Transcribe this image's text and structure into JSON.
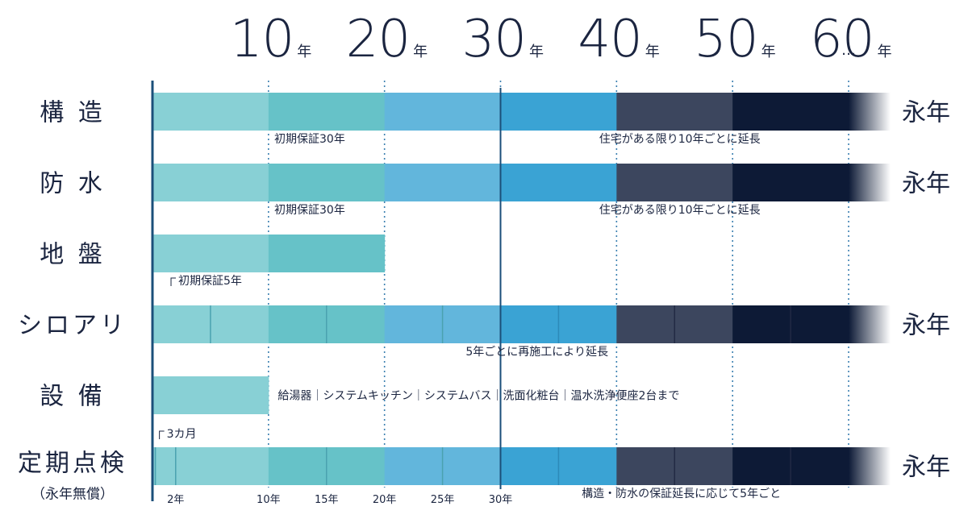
{
  "colors": {
    "seg": [
      "#88d0d5",
      "#66c2c8",
      "#62b6dc",
      "#3aa3d4",
      "#3c465e",
      "#0d1a36"
    ],
    "text": "#1b2540",
    "grid": "#3a7fb0",
    "axis": "#1b4f7a"
  },
  "chart_data": {
    "type": "bar",
    "title": "",
    "header": {
      "decades": [
        {
          "num": "10",
          "unit": "年",
          "x": 10
        },
        {
          "num": "20",
          "unit": "年",
          "x": 20
        },
        {
          "num": "30",
          "unit": "年",
          "x": 30
        },
        {
          "num": "40",
          "unit": "年",
          "x": 40
        },
        {
          "num": "50",
          "unit": "年",
          "x": 50
        },
        {
          "num": "60",
          "unit": "年",
          "x": 60
        }
      ],
      "ellipsis": "…"
    },
    "xlim": [
      0,
      60
    ],
    "gridlines": [
      10,
      20,
      30,
      40,
      50,
      60
    ],
    "current_line": 30,
    "rows": [
      {
        "label": "構 造",
        "end": 60,
        "fade": true,
        "eternal": "永年",
        "minor_ticks": [],
        "annotations": [
          {
            "text": "初期保証30年",
            "x": 10.5,
            "where": "below"
          },
          {
            "text": "住宅がある限り10年ごとに延長",
            "x": 38.5,
            "where": "below"
          }
        ]
      },
      {
        "label": "防 水",
        "end": 60,
        "fade": true,
        "eternal": "永年",
        "minor_ticks": [],
        "annotations": [
          {
            "text": "初期保証30年",
            "x": 10.5,
            "where": "below"
          },
          {
            "text": "住宅がある限り10年ごとに延長",
            "x": 38.5,
            "where": "below"
          }
        ]
      },
      {
        "label": "地 盤",
        "end": 20,
        "fade": false,
        "eternal": "",
        "minor_ticks": [],
        "annotations": [
          {
            "text": "初期保証5年",
            "x": 1.6,
            "where": "below",
            "bracket": true
          }
        ]
      },
      {
        "label": "シロアリ",
        "end": 60,
        "fade": true,
        "eternal": "永年",
        "minor_ticks": [
          5,
          15,
          25,
          35,
          45,
          55
        ],
        "annotations": [
          {
            "text": "5年ごとに再施工により延長",
            "x": 27,
            "where": "below"
          }
        ]
      },
      {
        "label": "設 備",
        "end": 10,
        "fade": false,
        "eternal": "",
        "minor_ticks": [],
        "annotations": [
          {
            "text": "給湯器｜システムキッチン｜システムバス｜洗面化粧台｜温水洗浄便座2台まで",
            "x": 10.8,
            "where": "right"
          }
        ]
      },
      {
        "label": "定期点検",
        "sublabel": "（永年無償）",
        "end": 60,
        "fade": true,
        "eternal": "永年",
        "minor_ticks": [
          0.25,
          2,
          15,
          25,
          35,
          45,
          55
        ],
        "annotations": [
          {
            "text": "3カ月",
            "x": 0.6,
            "where": "above",
            "bracket": true
          },
          {
            "text": "構造・防水の保証延長に応じて5年ごと",
            "x": 37,
            "where": "below"
          }
        ]
      }
    ],
    "bottom_ticks": [
      {
        "label": "2年",
        "x": 2
      },
      {
        "label": "10年",
        "x": 10
      },
      {
        "label": "15年",
        "x": 15
      },
      {
        "label": "20年",
        "x": 20
      },
      {
        "label": "25年",
        "x": 25
      },
      {
        "label": "30年",
        "x": 30
      }
    ]
  }
}
